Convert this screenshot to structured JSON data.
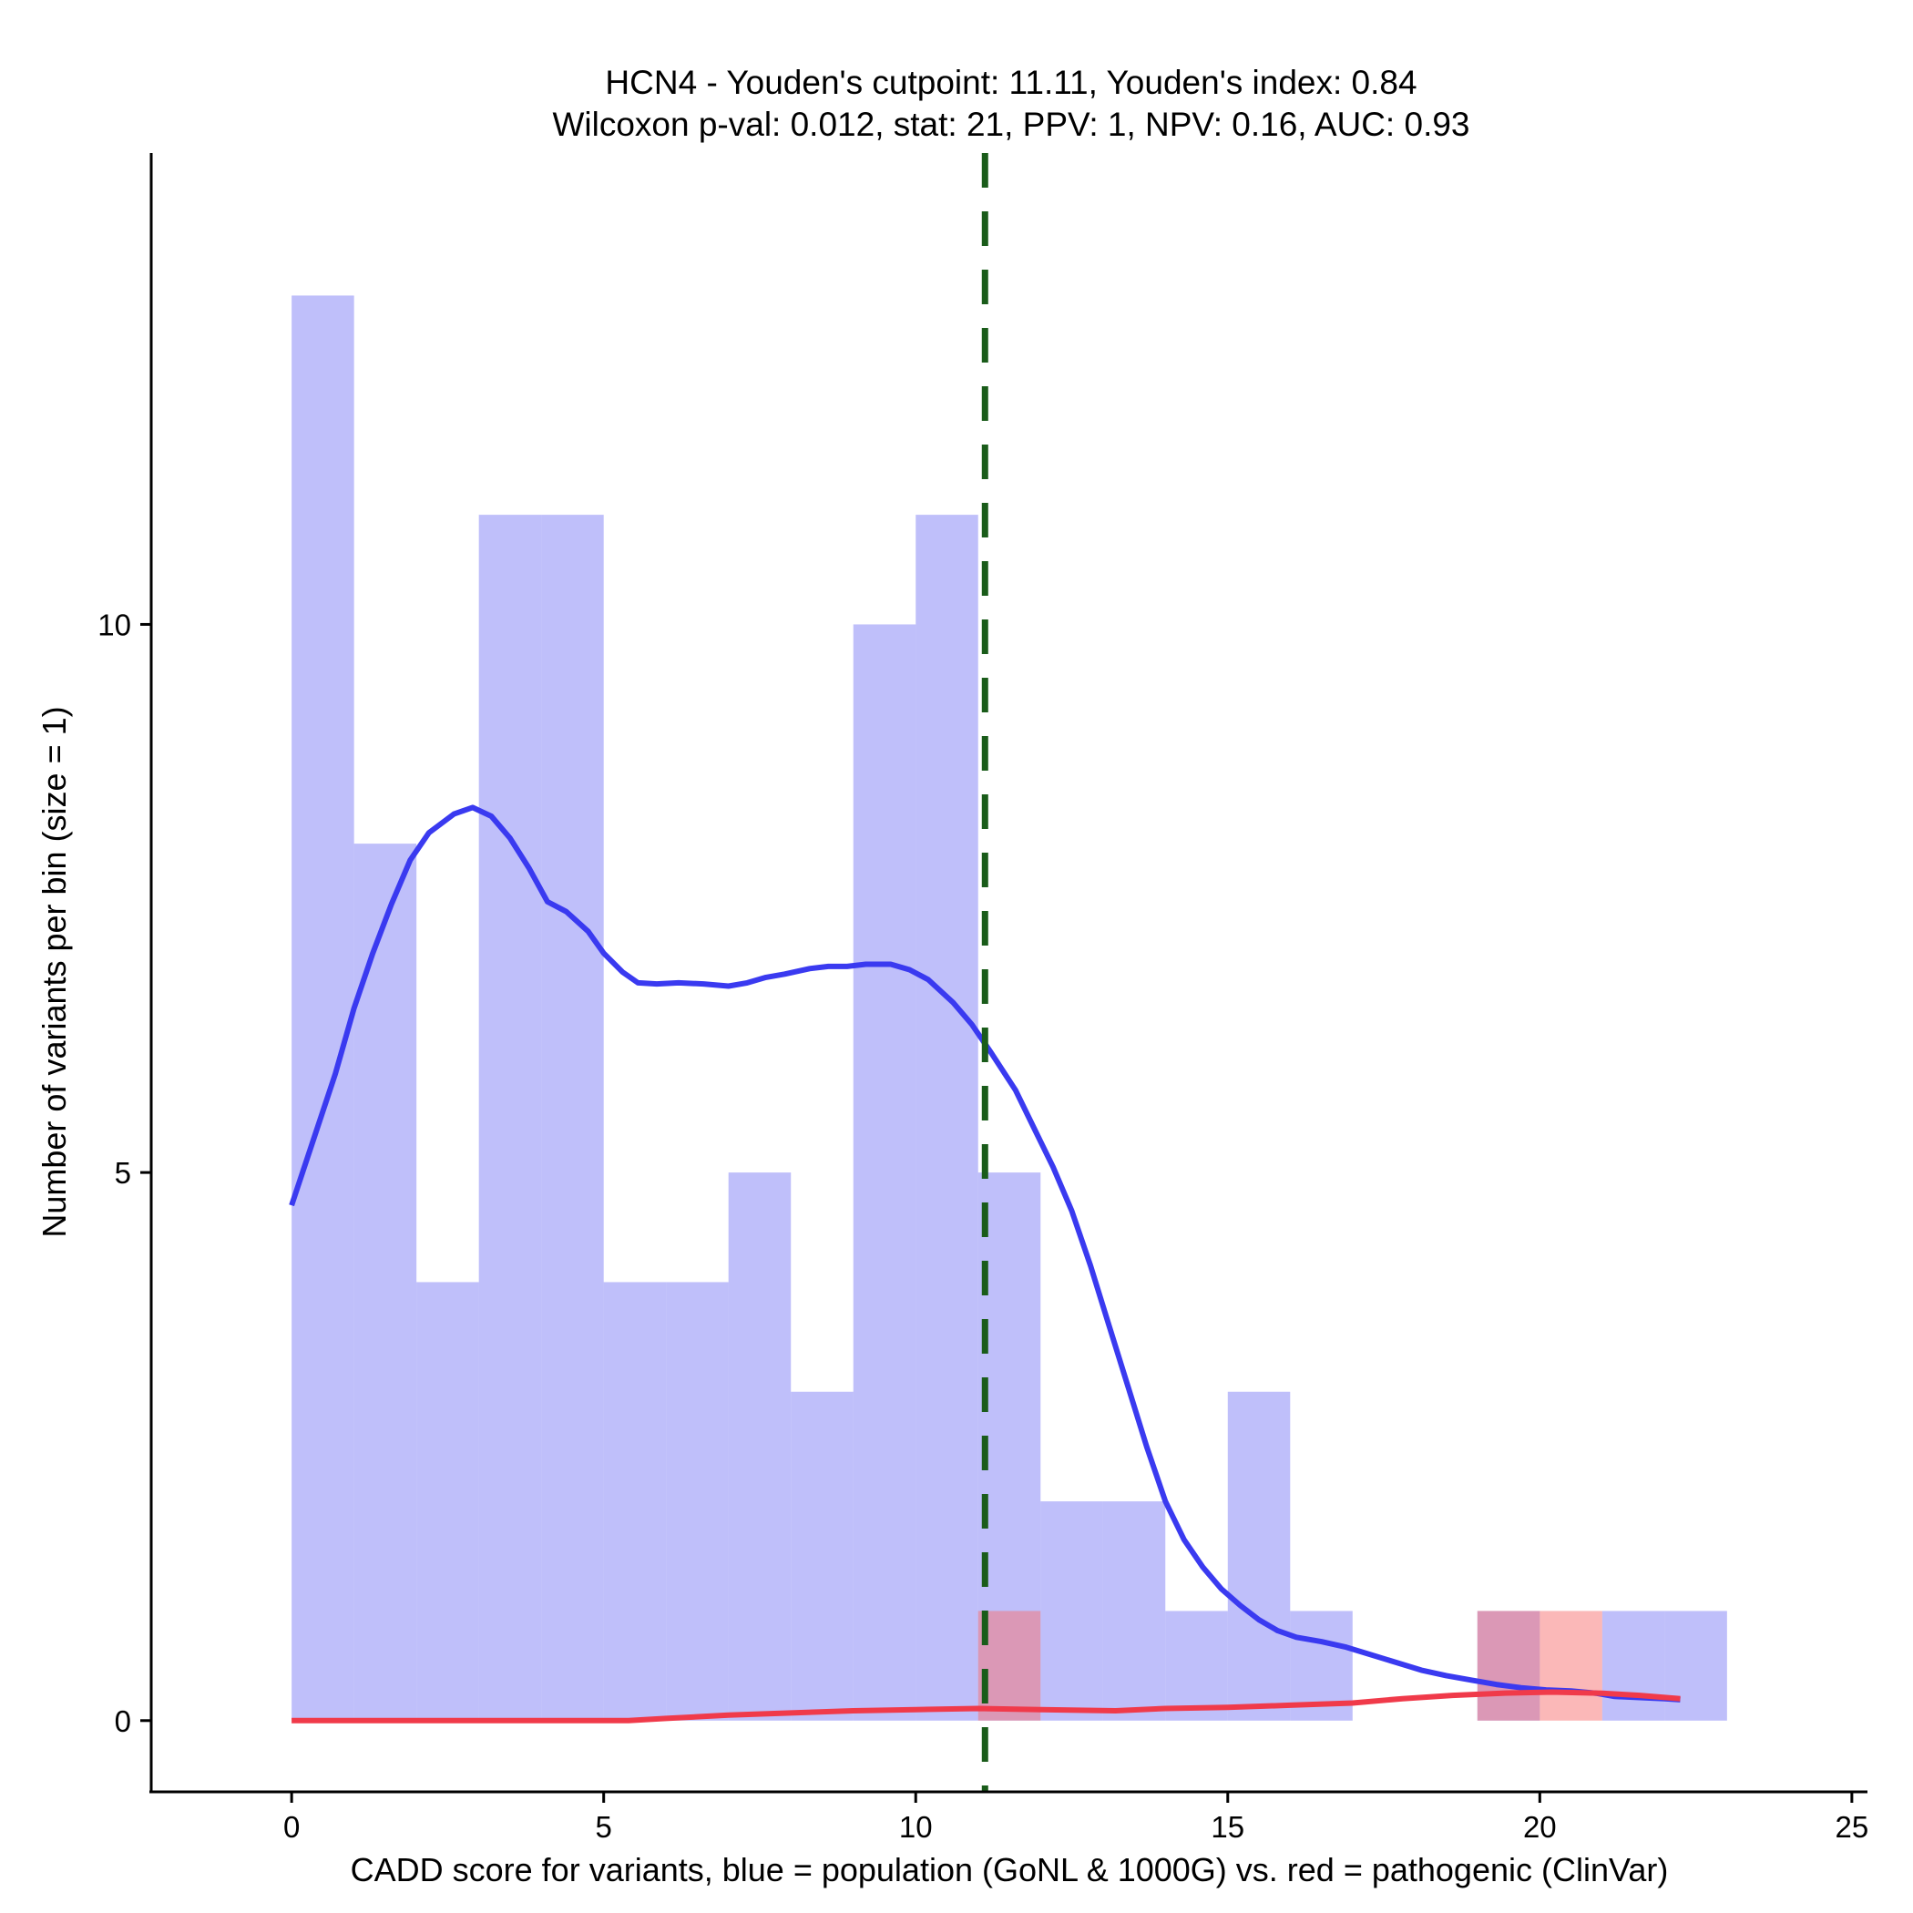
{
  "chart_data": {
    "type": "bar",
    "title_line1": "HCN4 - Youden's cutpoint: 11.11, Youden's index: 0.84",
    "title_line2": "Wilcoxon p-val: 0.012, stat: 21, PPV: 1, NPV: 0.16, AUC: 0.93",
    "xlabel": "CADD score for variants, blue = population (GoNL & 1000G) vs. red = pathogenic (ClinVar)",
    "ylabel": "Number of variants per bin (size = 1)",
    "xlim": [
      -2.25,
      25.25
    ],
    "ylim": [
      -0.65,
      14.3
    ],
    "xticks": [
      0,
      5,
      10,
      15,
      20,
      25
    ],
    "yticks": [
      0,
      5,
      10
    ],
    "bin_size": 1,
    "series": [
      {
        "name": "population (GoNL & 1000G)",
        "color": "#8080f5",
        "bins": [
          {
            "start": 0,
            "count": 13
          },
          {
            "start": 1,
            "count": 8
          },
          {
            "start": 2,
            "count": 4
          },
          {
            "start": 3,
            "count": 11
          },
          {
            "start": 4,
            "count": 11
          },
          {
            "start": 5,
            "count": 4
          },
          {
            "start": 6,
            "count": 4
          },
          {
            "start": 7,
            "count": 5
          },
          {
            "start": 8,
            "count": 3
          },
          {
            "start": 9,
            "count": 10
          },
          {
            "start": 10,
            "count": 11
          },
          {
            "start": 11,
            "count": 5
          },
          {
            "start": 12,
            "count": 2
          },
          {
            "start": 13,
            "count": 2
          },
          {
            "start": 14,
            "count": 1
          },
          {
            "start": 15,
            "count": 3
          },
          {
            "start": 16,
            "count": 1
          },
          {
            "start": 19,
            "count": 1
          },
          {
            "start": 21,
            "count": 1
          },
          {
            "start": 22,
            "count": 1
          }
        ]
      },
      {
        "name": "pathogenic (ClinVar)",
        "color": "#f87171",
        "bins": [
          {
            "start": 11,
            "count": 1
          },
          {
            "start": 19,
            "count": 1
          },
          {
            "start": 20,
            "count": 1
          }
        ]
      }
    ],
    "density_lines": [
      {
        "name": "population density",
        "color": "#3a3af0",
        "points": [
          [
            0,
            4.7
          ],
          [
            0.35,
            5.3
          ],
          [
            0.7,
            5.9
          ],
          [
            1.0,
            6.5
          ],
          [
            1.3,
            7.0
          ],
          [
            1.6,
            7.45
          ],
          [
            1.9,
            7.85
          ],
          [
            2.2,
            8.1
          ],
          [
            2.6,
            8.27
          ],
          [
            2.9,
            8.33
          ],
          [
            3.2,
            8.25
          ],
          [
            3.5,
            8.05
          ],
          [
            3.8,
            7.78
          ],
          [
            4.1,
            7.47
          ],
          [
            4.4,
            7.38
          ],
          [
            4.75,
            7.2
          ],
          [
            5.0,
            7.0
          ],
          [
            5.3,
            6.83
          ],
          [
            5.55,
            6.73
          ],
          [
            5.85,
            6.72
          ],
          [
            6.2,
            6.73
          ],
          [
            6.6,
            6.72
          ],
          [
            7.0,
            6.7
          ],
          [
            7.3,
            6.73
          ],
          [
            7.6,
            6.78
          ],
          [
            7.9,
            6.81
          ],
          [
            8.3,
            6.86
          ],
          [
            8.6,
            6.88
          ],
          [
            8.9,
            6.88
          ],
          [
            9.2,
            6.9
          ],
          [
            9.6,
            6.9
          ],
          [
            9.9,
            6.85
          ],
          [
            10.2,
            6.76
          ],
          [
            10.6,
            6.55
          ],
          [
            10.9,
            6.35
          ],
          [
            11.2,
            6.1
          ],
          [
            11.6,
            5.75
          ],
          [
            11.9,
            5.4
          ],
          [
            12.2,
            5.05
          ],
          [
            12.5,
            4.65
          ],
          [
            12.8,
            4.15
          ],
          [
            13.1,
            3.6
          ],
          [
            13.4,
            3.05
          ],
          [
            13.7,
            2.5
          ],
          [
            14.0,
            2.0
          ],
          [
            14.3,
            1.65
          ],
          [
            14.6,
            1.4
          ],
          [
            14.9,
            1.2
          ],
          [
            15.2,
            1.05
          ],
          [
            15.5,
            0.92
          ],
          [
            15.8,
            0.82
          ],
          [
            16.1,
            0.76
          ],
          [
            16.5,
            0.72
          ],
          [
            16.9,
            0.67
          ],
          [
            17.3,
            0.6
          ],
          [
            17.7,
            0.53
          ],
          [
            18.1,
            0.46
          ],
          [
            18.5,
            0.41
          ],
          [
            18.9,
            0.37
          ],
          [
            19.3,
            0.33
          ],
          [
            19.7,
            0.3
          ],
          [
            20.1,
            0.28
          ],
          [
            20.5,
            0.27
          ],
          [
            20.9,
            0.25
          ],
          [
            21.2,
            0.22
          ],
          [
            21.6,
            0.21
          ],
          [
            22.0,
            0.2
          ],
          [
            22.25,
            0.19
          ]
        ]
      },
      {
        "name": "pathogenic density",
        "color": "#f03a4a",
        "points": [
          [
            0,
            0.0
          ],
          [
            2,
            0.0
          ],
          [
            4,
            0.0
          ],
          [
            5.4,
            0.0
          ],
          [
            6.0,
            0.02
          ],
          [
            7.0,
            0.05
          ],
          [
            8.0,
            0.07
          ],
          [
            9.0,
            0.09
          ],
          [
            10.0,
            0.1
          ],
          [
            11.0,
            0.11
          ],
          [
            12.0,
            0.1
          ],
          [
            13.2,
            0.09
          ],
          [
            14.0,
            0.11
          ],
          [
            15.0,
            0.12
          ],
          [
            16.0,
            0.14
          ],
          [
            17.0,
            0.16
          ],
          [
            17.8,
            0.2
          ],
          [
            18.6,
            0.23
          ],
          [
            19.4,
            0.25
          ],
          [
            20.2,
            0.26
          ],
          [
            21.0,
            0.25
          ],
          [
            21.6,
            0.23
          ],
          [
            22.25,
            0.2
          ]
        ]
      }
    ],
    "cutpoint": {
      "x": 11.11,
      "color": "#1a5c1a",
      "style": "dashed"
    }
  }
}
